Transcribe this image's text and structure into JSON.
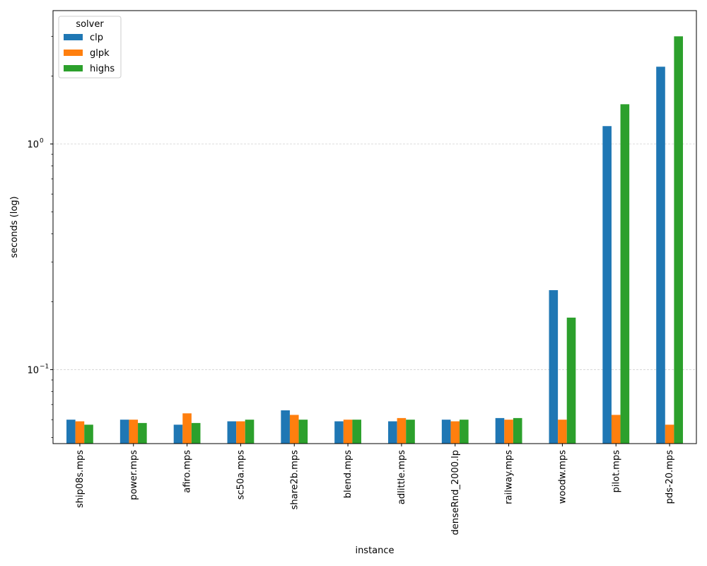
{
  "chart_data": {
    "type": "bar",
    "title": "",
    "xlabel": "instance",
    "ylabel": "seconds  (log)",
    "yscale": "log",
    "ylim": [
      0.047,
      3.9
    ],
    "grid": "y-major-dashed",
    "legend": {
      "title": "solver",
      "placement": "top-left"
    },
    "categories": [
      "ship08s.mps",
      "power.mps",
      "afiro.mps",
      "sc50a.mps",
      "share2b.mps",
      "blend.mps",
      "adlittle.mps",
      "denseRnd_2000.lp",
      "railway.mps",
      "woodw.mps",
      "pilot.mps",
      "pds-20.mps"
    ],
    "y_ticks": [
      {
        "value": 0.1,
        "base": "10",
        "exp": "−1"
      },
      {
        "value": 1,
        "base": "10",
        "exp": "0"
      }
    ],
    "series": [
      {
        "name": "clp",
        "color": "#1f77b4",
        "values": [
          0.06,
          0.06,
          0.057,
          0.059,
          0.066,
          0.059,
          0.059,
          0.06,
          0.061,
          0.225,
          1.2,
          2.2
        ]
      },
      {
        "name": "glpk",
        "color": "#ff7f0e",
        "values": [
          0.059,
          0.06,
          0.064,
          0.059,
          0.063,
          0.06,
          0.061,
          0.059,
          0.06,
          0.06,
          0.063,
          0.057
        ]
      },
      {
        "name": "highs",
        "color": "#2ca02c",
        "values": [
          0.057,
          0.058,
          0.058,
          0.06,
          0.06,
          0.06,
          0.06,
          0.06,
          0.061,
          0.17,
          1.5,
          3.0
        ]
      }
    ]
  }
}
